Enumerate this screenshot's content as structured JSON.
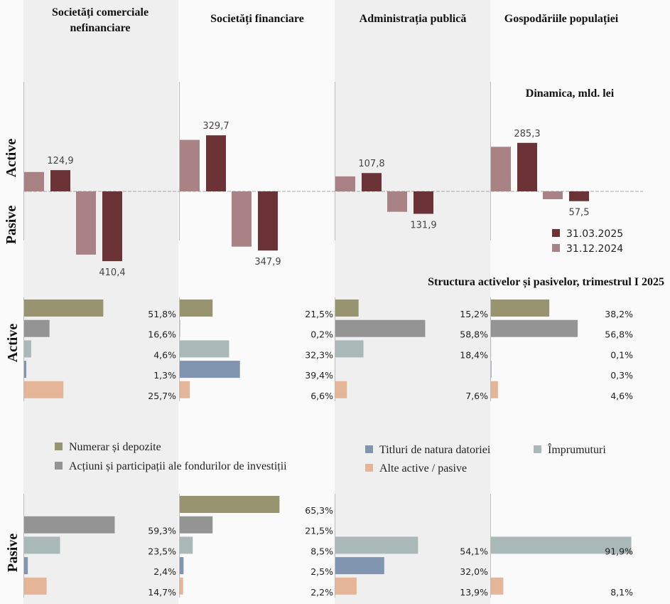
{
  "chart_data": [
    {
      "type": "bar",
      "title": "Dinamica, mld. lei",
      "categories": [
        "Societăți comerciale nefinanciare",
        "Societăți financiare",
        "Administrația publică",
        "Gospodăriile populației"
      ],
      "category_header_lines": [
        [
          "Societăți comerciale",
          "nefinanciare"
        ],
        [
          "Societăți financiare"
        ],
        [
          "Administrația publică"
        ],
        [
          "Gospodăriile populației"
        ]
      ],
      "groups": [
        "Active",
        "Pasive"
      ],
      "series": [
        {
          "name": "31.12.2024",
          "color": "#a88284",
          "active": [
            114,
            303,
            88,
            262
          ],
          "pasive": [
            372,
            325,
            120,
            46
          ]
        },
        {
          "name": "31.03.2025",
          "color": "#6b3335",
          "active": [
            124.9,
            329.7,
            107.8,
            285.3
          ],
          "pasive": [
            410.4,
            347.9,
            131.9,
            57.5
          ]
        }
      ],
      "data_labels": {
        "active": [
          "124,9",
          "329,7",
          "107,8",
          "285,3"
        ],
        "pasive": [
          "410,4",
          "347,9",
          "131,9",
          "57,5"
        ]
      },
      "legend": [
        "31.03.2025",
        "31.12.2024"
      ],
      "legend_position": "right",
      "grid": false
    },
    {
      "type": "bar",
      "orientation": "horizontal",
      "title": "Structura activelor și pasivelor, trimestrul I 2025",
      "categories": [
        "Societăți comerciale nefinanciare",
        "Societăți financiare",
        "Administrația publică",
        "Gospodăriile populației"
      ],
      "components": [
        {
          "name": "Numerar și depozite",
          "color": "#999470"
        },
        {
          "name": "Acțiuni și participații ale fondurilor de investiții",
          "color": "#949494"
        },
        {
          "name": "Împrumuturi",
          "color": "#a8b9b8"
        },
        {
          "name": "Titluri de natura datoriei",
          "color": "#8195b0"
        },
        {
          "name": "Alte active / pasive",
          "color": "#e4b597"
        }
      ],
      "active": [
        [
          "51,8%",
          "16,6%",
          "4,6%",
          "1,3%",
          "25,7%"
        ],
        [
          "21,5%",
          "0,2%",
          "32,3%",
          "39,4%",
          "6,6%"
        ],
        [
          "15,2%",
          "58,8%",
          "18,4%",
          null,
          "7,6%"
        ],
        [
          "38,2%",
          "56,8%",
          "0,1%",
          "0,3%",
          "4,6%"
        ]
      ],
      "pasive": [
        [
          null,
          "59,3%",
          "23,5%",
          "2,4%",
          "14,7%"
        ],
        [
          "65,3%",
          "21,5%",
          "8,5%",
          "2,5%",
          "2,2%"
        ],
        [
          null,
          null,
          "54,1%",
          "32,0%",
          "13,9%"
        ],
        [
          null,
          null,
          "91,9%",
          null,
          "8,1%"
        ]
      ],
      "legend_order": [
        0,
        1,
        3,
        2,
        4
      ],
      "grid": false
    }
  ],
  "labels": {
    "active": "Active",
    "pasive": "Pasive"
  },
  "colors": {
    "panel_shade": "#efefef",
    "background": "#fafafa",
    "axis": "#bdbdbd"
  }
}
